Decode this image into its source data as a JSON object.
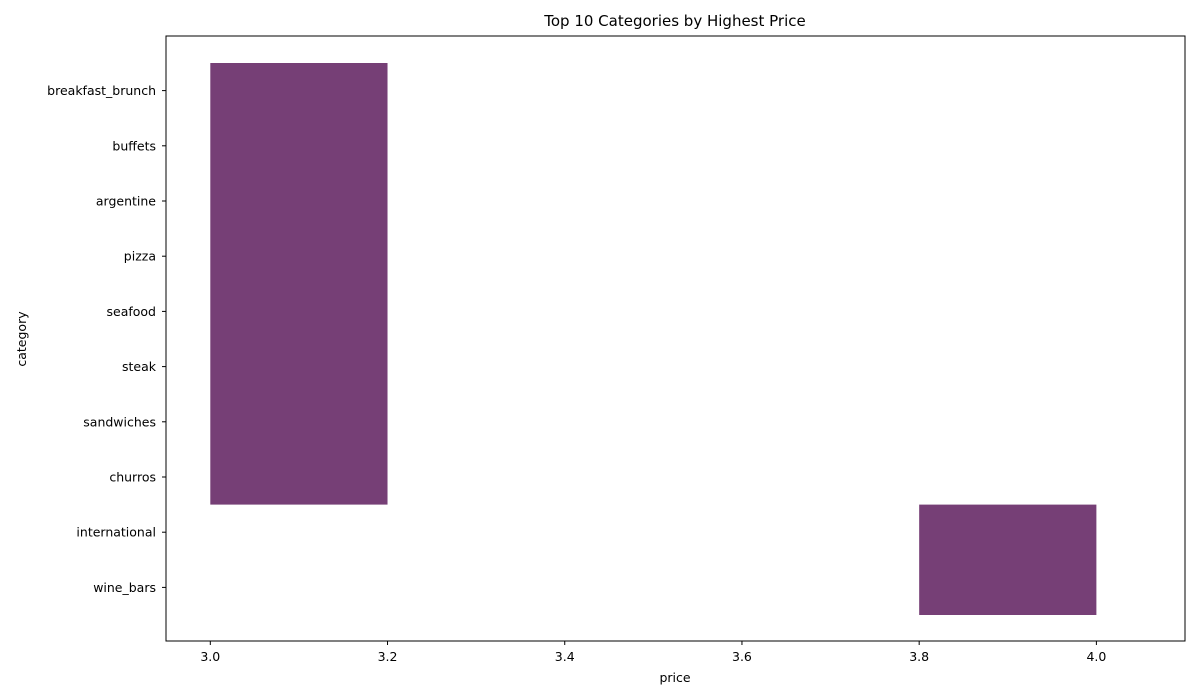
{
  "chart_data": {
    "type": "bar",
    "orientation": "horizontal",
    "title": "Top 10 Categories by Highest Price",
    "xlabel": "price",
    "ylabel": "category",
    "xlim": [
      2.95,
      4.1
    ],
    "x_ticks": [
      "3.0",
      "3.2",
      "3.4",
      "3.6",
      "3.8",
      "4.0"
    ],
    "categories": [
      "breakfast_brunch",
      "buffets",
      "argentine",
      "pizza",
      "seafood",
      "steak",
      "sandwiches",
      "churros",
      "international",
      "wine_bars"
    ],
    "bars": [
      {
        "category_from": "breakfast_brunch",
        "category_to": "churros",
        "x_start": 3.0,
        "x_end": 3.2
      },
      {
        "category_from": "international",
        "category_to": "wine_bars",
        "x_start": 3.8,
        "x_end": 4.0
      }
    ],
    "grid": false,
    "bar_color": "#763f76"
  }
}
